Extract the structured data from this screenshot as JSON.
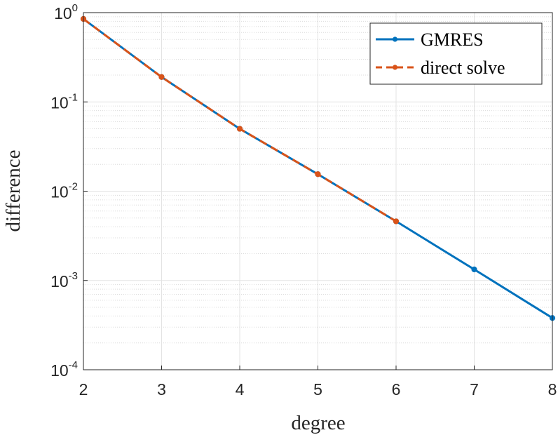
{
  "chart_data": {
    "type": "line",
    "title": "",
    "xlabel": "degree",
    "ylabel": "difference",
    "xlim": [
      2,
      8
    ],
    "ylim": [
      0.0001,
      1
    ],
    "yscale": "log",
    "grid": true,
    "minor_grid": true,
    "legend_position": "top-right",
    "x_ticks": [
      2,
      3,
      4,
      5,
      6,
      7,
      8
    ],
    "x_tick_labels": [
      "2",
      "3",
      "4",
      "5",
      "6",
      "7",
      "8"
    ],
    "y_ticks": [
      {
        "value": 1,
        "base": "10",
        "exp": "0"
      },
      {
        "value": 0.1,
        "base": "10",
        "exp": "-1"
      },
      {
        "value": 0.01,
        "base": "10",
        "exp": "-2"
      },
      {
        "value": 0.001,
        "base": "10",
        "exp": "-3"
      },
      {
        "value": 0.0001,
        "base": "10",
        "exp": "-4"
      }
    ],
    "series": [
      {
        "name": "GMRES",
        "color": "#0072BD",
        "style": "solid",
        "marker": "dot",
        "x": [
          2,
          3,
          4,
          5,
          6,
          7,
          8
        ],
        "y": [
          0.85,
          0.19,
          0.05,
          0.0155,
          0.0046,
          0.00133,
          0.00038
        ]
      },
      {
        "name": "direct solve",
        "color": "#D95319",
        "style": "dashed",
        "marker": "dot",
        "x": [
          2,
          3,
          4,
          5,
          6
        ],
        "y": [
          0.85,
          0.19,
          0.05,
          0.0155,
          0.0046
        ]
      }
    ]
  }
}
